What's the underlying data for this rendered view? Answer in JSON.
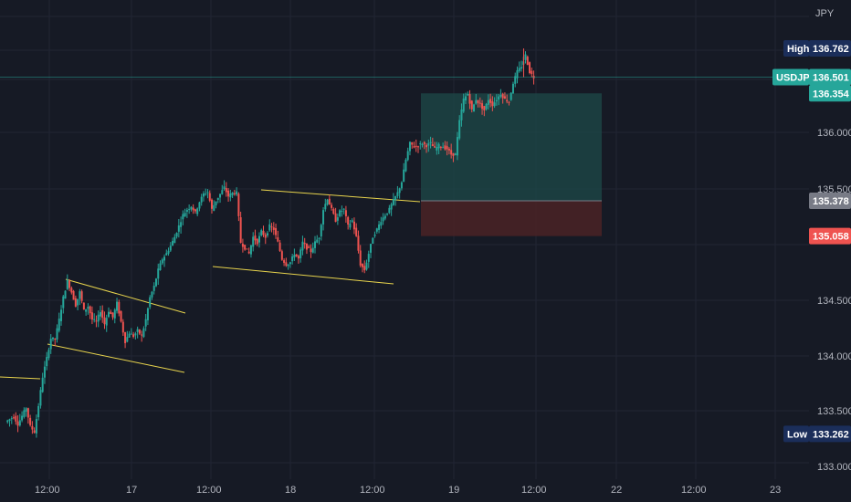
{
  "chart_data": {
    "type": "candlestick",
    "symbol": "USDJPY",
    "currency": "JPY",
    "y_ticks": [
      "136.000",
      "135.500",
      "134.500",
      "134.000",
      "133.500",
      "133.000"
    ],
    "x_ticks": [
      "12:00",
      "17",
      "12:00",
      "18",
      "12:00",
      "19",
      "12:00",
      "22",
      "12:00",
      "23"
    ],
    "grid": true,
    "last_price": 136.501,
    "high": 136.762,
    "low": 133.262,
    "target": 136.354,
    "entry": 135.378,
    "stop": 135.058,
    "labels": {
      "high": "High",
      "low": "Low",
      "high_value": "136.762",
      "low_value": "133.262",
      "last_symbol": "USDJPY",
      "last_value": "136.501",
      "target_value": "136.354",
      "entry_value": "135.378",
      "stop_value": "135.058"
    },
    "price_path": [
      [
        0,
        133.37
      ],
      [
        2,
        133.42
      ],
      [
        3,
        133.35
      ],
      [
        5,
        133.5
      ],
      [
        6,
        133.33
      ],
      [
        7,
        133.28
      ],
      [
        8,
        133.52
      ],
      [
        9,
        133.78
      ],
      [
        10,
        133.95
      ],
      [
        11,
        134.13
      ],
      [
        12,
        134.12
      ],
      [
        13,
        134.3
      ],
      [
        14,
        134.5
      ],
      [
        15,
        134.65
      ],
      [
        16,
        134.55
      ],
      [
        17,
        134.43
      ],
      [
        18,
        134.55
      ],
      [
        19,
        134.38
      ],
      [
        20,
        134.42
      ],
      [
        21,
        134.3
      ],
      [
        22,
        134.28
      ],
      [
        23,
        134.38
      ],
      [
        24,
        134.26
      ],
      [
        25,
        134.38
      ],
      [
        26,
        134.32
      ],
      [
        27,
        134.45
      ],
      [
        28,
        134.28
      ],
      [
        29,
        134.1
      ],
      [
        30,
        134.18
      ],
      [
        31,
        134.15
      ],
      [
        32,
        134.2
      ],
      [
        33,
        134.15
      ],
      [
        34,
        134.3
      ],
      [
        35,
        134.5
      ],
      [
        36,
        134.6
      ],
      [
        37,
        134.75
      ],
      [
        38,
        134.85
      ],
      [
        39,
        134.9
      ],
      [
        40,
        134.97
      ],
      [
        41,
        135.05
      ],
      [
        42,
        135.15
      ],
      [
        43,
        135.25
      ],
      [
        44,
        135.3
      ],
      [
        45,
        135.33
      ],
      [
        46,
        135.27
      ],
      [
        47,
        135.37
      ],
      [
        48,
        135.44
      ],
      [
        49,
        135.46
      ],
      [
        50,
        135.3
      ],
      [
        51,
        135.38
      ],
      [
        52,
        135.44
      ],
      [
        53,
        135.5
      ],
      [
        54,
        135.42
      ],
      [
        55,
        135.45
      ],
      [
        56,
        135.45
      ],
      [
        57,
        135.0
      ],
      [
        58,
        134.95
      ],
      [
        59,
        134.9
      ],
      [
        60,
        135.05
      ],
      [
        61,
        135.0
      ],
      [
        62,
        135.1
      ],
      [
        63,
        135.05
      ],
      [
        64,
        135.15
      ],
      [
        65,
        135.12
      ],
      [
        66,
        135.0
      ],
      [
        67,
        134.85
      ],
      [
        68,
        134.8
      ],
      [
        69,
        134.82
      ],
      [
        70,
        134.9
      ],
      [
        71,
        134.85
      ],
      [
        72,
        135.0
      ],
      [
        73,
        134.95
      ],
      [
        74,
        134.92
      ],
      [
        75,
        135.0
      ],
      [
        76,
        135.05
      ],
      [
        77,
        135.3
      ],
      [
        78,
        135.4
      ],
      [
        79,
        135.3
      ],
      [
        80,
        135.2
      ],
      [
        81,
        135.28
      ],
      [
        82,
        135.3
      ],
      [
        83,
        135.15
      ],
      [
        84,
        135.2
      ],
      [
        85,
        135.05
      ],
      [
        86,
        134.8
      ],
      [
        87,
        134.75
      ],
      [
        88,
        134.9
      ],
      [
        89,
        135.05
      ],
      [
        90,
        135.12
      ],
      [
        91,
        135.2
      ],
      [
        92,
        135.25
      ],
      [
        93,
        135.3
      ],
      [
        94,
        135.38
      ],
      [
        95,
        135.45
      ],
      [
        96,
        135.55
      ],
      [
        97,
        135.75
      ],
      [
        98,
        135.9
      ],
      [
        99,
        135.87
      ],
      [
        100,
        135.88
      ],
      [
        101,
        135.9
      ],
      [
        102,
        135.88
      ],
      [
        103,
        135.9
      ],
      [
        104,
        135.85
      ],
      [
        105,
        135.88
      ],
      [
        106,
        135.87
      ],
      [
        107,
        135.85
      ],
      [
        108,
        135.8
      ],
      [
        109,
        135.8
      ],
      [
        110,
        136.1
      ],
      [
        111,
        136.3
      ],
      [
        112,
        136.35
      ],
      [
        113,
        136.2
      ],
      [
        114,
        136.3
      ],
      [
        115,
        136.25
      ],
      [
        116,
        136.2
      ],
      [
        117,
        136.3
      ],
      [
        118,
        136.25
      ],
      [
        119,
        136.3
      ],
      [
        120,
        136.35
      ],
      [
        121,
        136.3
      ],
      [
        122,
        136.28
      ],
      [
        123,
        136.45
      ],
      [
        124,
        136.55
      ],
      [
        125,
        136.6
      ],
      [
        126,
        136.7
      ],
      [
        127,
        136.55
      ],
      [
        128,
        136.5
      ]
    ]
  }
}
